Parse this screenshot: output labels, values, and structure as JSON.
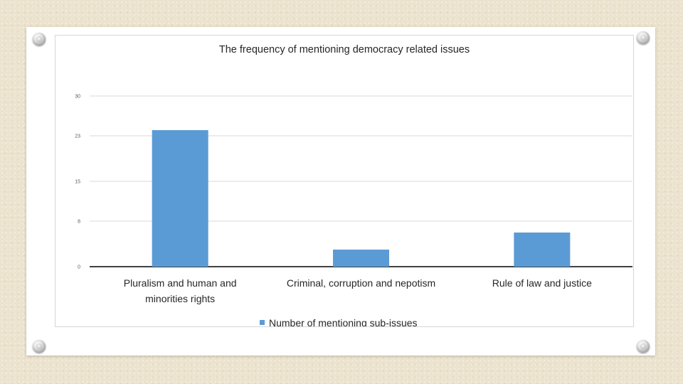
{
  "slide": {
    "background_color": "#ece3cf",
    "card_color": "#ffffff"
  },
  "chart_data": {
    "type": "bar",
    "title": "The frequency of mentioning democracy related issues",
    "xlabel": "",
    "ylabel": "",
    "categories": [
      [
        "Pluralism and human and",
        "minorities rights"
      ],
      [
        "Criminal, corruption and nepotism"
      ],
      [
        "Rule of law and justice"
      ]
    ],
    "series": [
      {
        "name": "Number of mentioning sub-issues",
        "color": "#5b9bd5",
        "values": [
          24,
          3,
          6
        ]
      }
    ],
    "y_ticks": [
      0,
      8,
      15,
      23,
      30
    ],
    "ylim": [
      0,
      30
    ],
    "grid": true,
    "legend_position": "bottom"
  }
}
